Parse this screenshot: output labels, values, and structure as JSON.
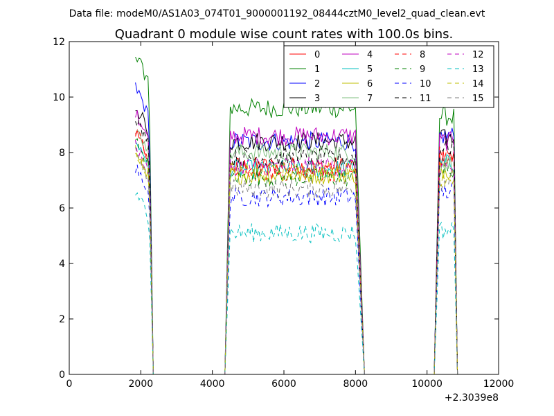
{
  "chart_data": {
    "type": "line",
    "suptitle": "Data file: modeM0/AS1A03_074T01_9000001192_08444cztM0_level2_quad_clean.evt",
    "title": "Quadrant 0 module wise count rates with 100.0s bins.",
    "xlabel": "",
    "ylabel": "",
    "xlim": [
      0,
      12000
    ],
    "ylim": [
      0,
      12
    ],
    "x_offset_label": "+2.3039e8",
    "xticks": [
      0,
      2000,
      4000,
      6000,
      8000,
      10000,
      12000
    ],
    "xtick_labels": [
      "0",
      "2000",
      "4000",
      "6000",
      "8000",
      "10000",
      "12000"
    ],
    "yticks": [
      0,
      2,
      4,
      6,
      8,
      10,
      12
    ],
    "ytick_labels": [
      "0",
      "2",
      "4",
      "6",
      "8",
      "10",
      "12"
    ],
    "grid": false,
    "legend_position": "top-right",
    "legend_columns": 4,
    "segments": [
      {
        "start": 1850,
        "end": 2350
      },
      {
        "start": 4350,
        "end": 8250
      },
      {
        "start": 10200,
        "end": 10850
      }
    ],
    "series": [
      {
        "name": "0",
        "color": "#ff0000",
        "dash": "solid",
        "levels": [
          8.2,
          7.5,
          7.8
        ]
      },
      {
        "name": "1",
        "color": "#008000",
        "dash": "solid",
        "levels": [
          11.0,
          9.6,
          9.3
        ]
      },
      {
        "name": "2",
        "color": "#0000ff",
        "dash": "solid",
        "levels": [
          9.8,
          8.4,
          8.6
        ]
      },
      {
        "name": "3",
        "color": "#000000",
        "dash": "solid",
        "levels": [
          9.2,
          8.4,
          8.5
        ]
      },
      {
        "name": "4",
        "color": "#bf00bf",
        "dash": "solid",
        "levels": [
          9.0,
          8.6,
          8.4
        ]
      },
      {
        "name": "5",
        "color": "#00bfbf",
        "dash": "solid",
        "levels": [
          8.0,
          7.4,
          7.6
        ]
      },
      {
        "name": "6",
        "color": "#bfbf00",
        "dash": "solid",
        "levels": [
          7.6,
          7.2,
          7.4
        ]
      },
      {
        "name": "7",
        "color": "#7fbf7f",
        "dash": "solid",
        "levels": [
          8.4,
          8.0,
          7.6
        ]
      },
      {
        "name": "8",
        "color": "#ff0000",
        "dash": "dashed",
        "levels": [
          8.3,
          7.3,
          7.9
        ]
      },
      {
        "name": "9",
        "color": "#008000",
        "dash": "dashed",
        "levels": [
          8.0,
          7.1,
          7.3
        ]
      },
      {
        "name": "10",
        "color": "#0000ff",
        "dash": "dashed",
        "levels": [
          7.0,
          6.4,
          6.6
        ]
      },
      {
        "name": "11",
        "color": "#000000",
        "dash": "dashed",
        "levels": [
          8.8,
          7.8,
          8.2
        ]
      },
      {
        "name": "12",
        "color": "#bf00bf",
        "dash": "dashed",
        "levels": [
          7.8,
          7.5,
          7.3
        ]
      },
      {
        "name": "13",
        "color": "#00bfbf",
        "dash": "dashed",
        "levels": [
          6.1,
          5.1,
          5.2
        ]
      },
      {
        "name": "14",
        "color": "#bfbf00",
        "dash": "dashed",
        "levels": [
          7.6,
          7.3,
          7.1
        ]
      },
      {
        "name": "15",
        "color": "#7f7f7f",
        "dash": "dashed",
        "levels": [
          7.5,
          6.7,
          7.0
        ]
      }
    ]
  }
}
